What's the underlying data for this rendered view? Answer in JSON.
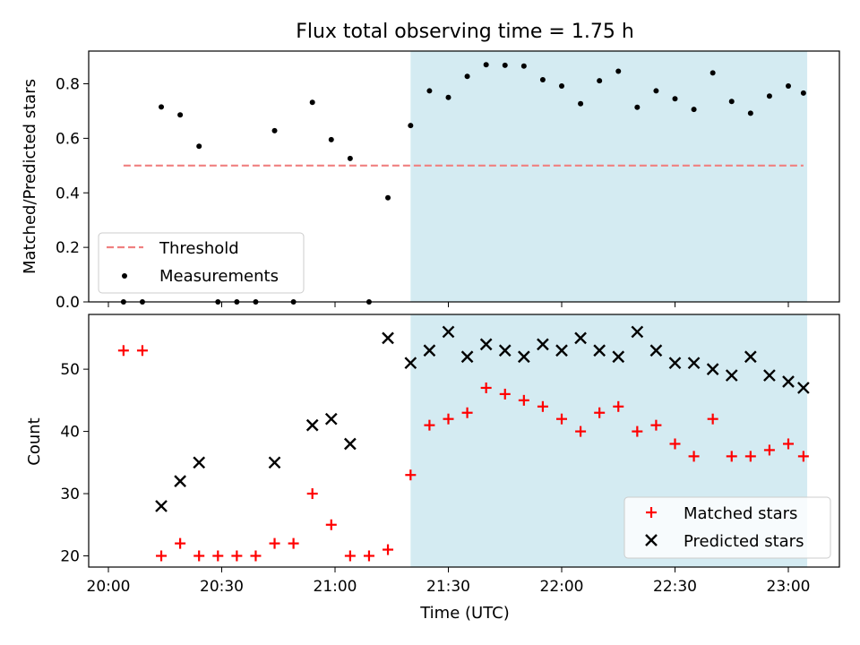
{
  "chart_data": [
    {
      "type": "scatter",
      "title": "Flux total observing time = 1.75 h",
      "xlabel": "",
      "ylabel": "Matched/Predicted stars",
      "ylim": [
        0,
        0.92
      ],
      "yticks": [
        "0.0",
        "0.2",
        "0.4",
        "0.6",
        "0.8"
      ],
      "highlight_span": {
        "start": "21:20",
        "end": "23:05",
        "color": "#add8e6"
      },
      "threshold": {
        "name": "Threshold",
        "value": 0.5,
        "x_start": "20:04",
        "x_end": "23:04",
        "color": "#f08080",
        "style": "dashed"
      },
      "series": [
        {
          "name": "Measurements",
          "color": "#000000",
          "x": [
            "20:04",
            "20:09",
            "20:14",
            "20:19",
            "20:24",
            "20:29",
            "20:34",
            "20:39",
            "20:44",
            "20:49",
            "20:54",
            "20:59",
            "21:04",
            "21:09",
            "21:14",
            "21:20",
            "21:25",
            "21:30",
            "21:35",
            "21:40",
            "21:45",
            "21:50",
            "21:55",
            "22:00",
            "22:05",
            "22:10",
            "22:15",
            "22:20",
            "22:25",
            "22:30",
            "22:35",
            "22:40",
            "22:45",
            "22:50",
            "22:55",
            "23:00",
            "23:04"
          ],
          "values": [
            0.0,
            0.0,
            0.715,
            0.686,
            0.571,
            0.0,
            0.0,
            0.0,
            0.628,
            0.0,
            0.732,
            0.595,
            0.526,
            0.0,
            0.382,
            0.647,
            0.774,
            0.75,
            0.827,
            0.87,
            0.868,
            0.865,
            0.815,
            0.792,
            0.727,
            0.811,
            0.846,
            0.714,
            0.774,
            0.745,
            0.706,
            0.84,
            0.735,
            0.692,
            0.755,
            0.792,
            0.766
          ]
        }
      ],
      "legend": {
        "position": "lower-left",
        "entries": [
          "Threshold",
          "Measurements"
        ]
      }
    },
    {
      "type": "scatter",
      "title": "",
      "xlabel": "Time (UTC)",
      "ylabel": "Count",
      "ylim": [
        18.2,
        58.8
      ],
      "yticks": [
        "20",
        "30",
        "40",
        "50"
      ],
      "xticks": [
        "20:00",
        "20:30",
        "21:00",
        "21:30",
        "22:00",
        "22:30",
        "23:00"
      ],
      "highlight_span": {
        "start": "21:20",
        "end": "23:05",
        "color": "#add8e6"
      },
      "series": [
        {
          "name": "Matched stars",
          "color": "#ff0000",
          "marker": "+",
          "x": [
            "20:04",
            "20:09",
            "20:14",
            "20:19",
            "20:24",
            "20:29",
            "20:34",
            "20:39",
            "20:44",
            "20:49",
            "20:54",
            "20:59",
            "21:04",
            "21:09",
            "21:14",
            "21:20",
            "21:25",
            "21:30",
            "21:35",
            "21:40",
            "21:45",
            "21:50",
            "21:55",
            "22:00",
            "22:05",
            "22:10",
            "22:15",
            "22:20",
            "22:25",
            "22:30",
            "22:35",
            "22:40",
            "22:45",
            "22:50",
            "22:55",
            "23:00",
            "23:04"
          ],
          "values": [
            53,
            53,
            20,
            22,
            20,
            20,
            20,
            20,
            22,
            22,
            30,
            25,
            20,
            20,
            21,
            33,
            41,
            42,
            43,
            47,
            46,
            45,
            44,
            42,
            40,
            43,
            44,
            40,
            41,
            38,
            36,
            42,
            36,
            36,
            37,
            38,
            36
          ]
        },
        {
          "name": "Predicted stars",
          "color": "#000000",
          "marker": "x",
          "x": [
            "20:14",
            "20:19",
            "20:24",
            "20:44",
            "20:54",
            "20:59",
            "21:04",
            "21:14",
            "21:20",
            "21:25",
            "21:30",
            "21:35",
            "21:40",
            "21:45",
            "21:50",
            "21:55",
            "22:00",
            "22:05",
            "22:10",
            "22:15",
            "22:20",
            "22:25",
            "22:30",
            "22:35",
            "22:40",
            "22:45",
            "22:50",
            "22:55",
            "23:00",
            "23:04"
          ],
          "values": [
            28,
            32,
            35,
            35,
            41,
            42,
            38,
            55,
            51,
            53,
            56,
            52,
            54,
            53,
            52,
            54,
            53,
            55,
            53,
            52,
            56,
            53,
            51,
            51,
            50,
            49,
            52,
            49,
            48,
            47
          ]
        }
      ],
      "legend": {
        "position": "lower-right",
        "entries": [
          "Matched stars",
          "Predicted stars"
        ]
      }
    }
  ]
}
